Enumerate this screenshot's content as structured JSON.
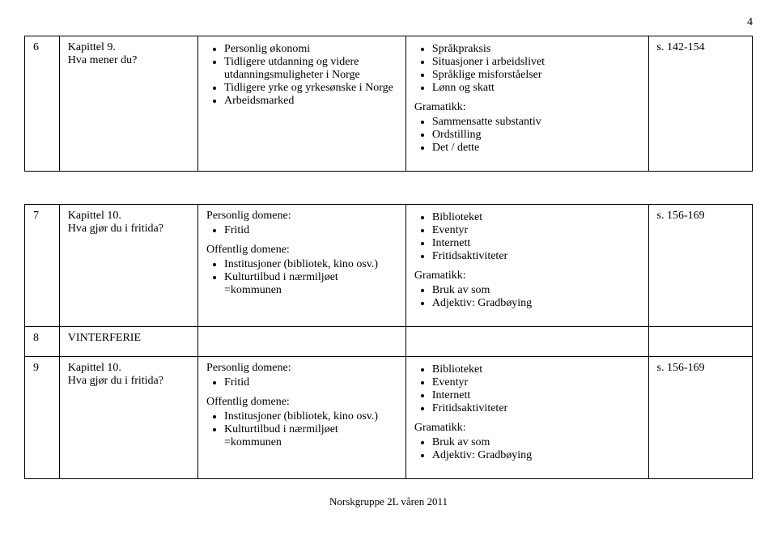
{
  "page_number": "4",
  "rows": [
    {
      "num": "6",
      "title_line1": "Kapittel 9.",
      "title_line2": "Hva mener du?",
      "col3_items": [
        "Personlig økonomi",
        "Tidligere utdanning og videre utdanningsmuligheter i Norge",
        "Tidligere yrke og yrkesønske i Norge",
        "Arbeidsmarked"
      ],
      "col4_items_top": [
        "Språkpraksis",
        "Situasjoner i arbeidslivet",
        "Språklige misforståelser",
        "Lønn og skatt"
      ],
      "col4_label": "Gramatikk:",
      "col4_items_bottom": [
        "Sammensatte substantiv",
        "Ordstilling",
        "Det / dette"
      ],
      "col5": "s. 142-154"
    },
    {
      "num": "7",
      "title_line1": "Kapittel 10.",
      "title_line2": "Hva gjør du i fritida?",
      "col3_label1": "Personlig domene:",
      "col3_items1": [
        "Fritid"
      ],
      "col3_label2": "Offentlig domene:",
      "col3_items2": [
        "Institusjoner (bibliotek, kino osv.)",
        "Kulturtilbud i nærmiljøet =kommunen"
      ],
      "col4_items_top": [
        "Biblioteket",
        "Eventyr",
        "Internett",
        "Fritidsaktiviteter"
      ],
      "col4_label": "Gramatikk:",
      "col4_items_bottom": [
        "Bruk av som",
        "Adjektiv: Gradbøying"
      ],
      "col5": "s. 156-169"
    },
    {
      "num": "8",
      "title_line1": "VINTERFERIE"
    },
    {
      "num": "9",
      "title_line1": "Kapittel 10.",
      "title_line2": "Hva gjør du i fritida?",
      "col3_label1": "Personlig domene:",
      "col3_items1": [
        "Fritid"
      ],
      "col3_label2": "Offentlig domene:",
      "col3_items2": [
        "Institusjoner (bibliotek, kino osv.)",
        "Kulturtilbud i nærmiljøet =kommunen"
      ],
      "col4_items_top": [
        "Biblioteket",
        "Eventyr",
        "Internett",
        "Fritidsaktiviteter"
      ],
      "col4_label": "Gramatikk:",
      "col4_items_bottom": [
        "Bruk av som",
        "Adjektiv: Gradbøying"
      ],
      "col5": "s. 156-169"
    }
  ],
  "footer": "Norskgruppe 2L våren 2011"
}
